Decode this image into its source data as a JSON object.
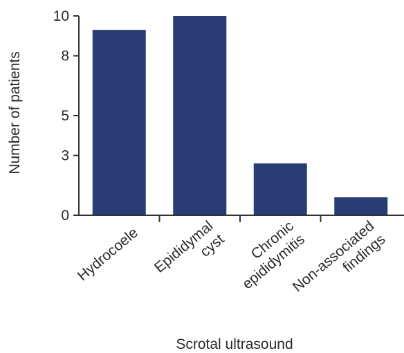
{
  "chart_data": {
    "type": "bar",
    "categories": [
      [
        "Hydrocoele"
      ],
      [
        "Epididymal",
        "cyst"
      ],
      [
        "Chronic",
        "epididymitis"
      ],
      [
        "Non-associated",
        "findings"
      ]
    ],
    "values": [
      9.3,
      10,
      2.6,
      0.9
    ],
    "xlabel": "Scrotal ultrasound",
    "ylabel": "Number of patients",
    "ylim": [
      0,
      10
    ],
    "yticks": [
      0,
      3,
      5,
      8,
      10
    ],
    "colors": {
      "bar": "#293d74",
      "axis": "#333333",
      "text": "#2b2b2b"
    },
    "grid": false,
    "legend": "none"
  }
}
